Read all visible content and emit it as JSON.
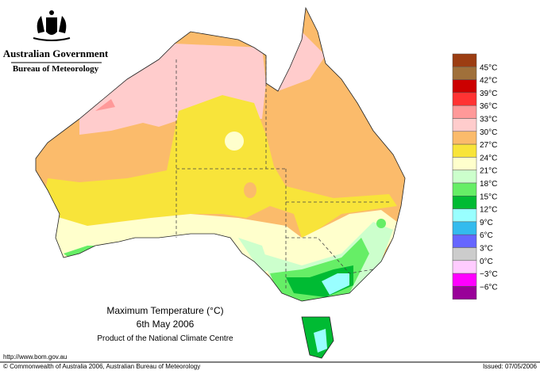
{
  "header": {
    "agency": "Australian Government",
    "bureau": "Bureau of Meteorology"
  },
  "map": {
    "title": "Maximum Temperature (°C)",
    "date": "6th May 2006",
    "product": "Product of the National Climate Centre"
  },
  "legend": {
    "labels": [
      "45°C",
      "42°C",
      "39°C",
      "36°C",
      "33°C",
      "30°C",
      "27°C",
      "24°C",
      "21°C",
      "18°C",
      "15°C",
      "12°C",
      "9°C",
      "6°C",
      "3°C",
      "0°C",
      "−3°C",
      "−6°C"
    ],
    "colors": [
      "#9c3d12",
      "#a0703a",
      "#cc0000",
      "#ff3333",
      "#ff9999",
      "#ffcccc",
      "#fbbb6b",
      "#f8e43a",
      "#ffffcc",
      "#ccffcc",
      "#66ee66",
      "#00bb33",
      "#99ffff",
      "#33bbee",
      "#6666ff",
      "#cccccc",
      "#ffccff",
      "#ff00ff",
      "#990099"
    ]
  },
  "footer": {
    "url": "http://www.bom.gov.au",
    "copyright": "© Commonwealth of Australia 2006, Australian Bureau of Meteorology",
    "issued": "Issued: 07/05/2006"
  }
}
